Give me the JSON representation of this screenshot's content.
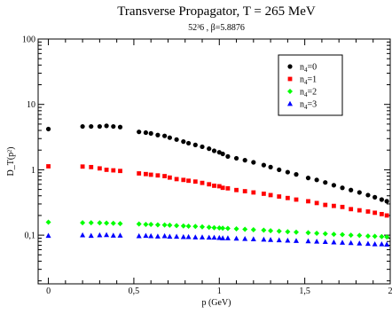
{
  "chart_data": {
    "type": "scatter",
    "title": "Transverse Propagator, T = 265 MeV",
    "subtitle": "52³6 , β=5.8876",
    "xlabel": "p (GeV)",
    "ylabel": "D_T(p²)",
    "xlim": [
      -0.06,
      2.0
    ],
    "ylim": [
      0.018,
      100
    ],
    "yscale": "log",
    "grid": false,
    "legend_position": "top-right",
    "x_ticks": [
      {
        "value": 0,
        "label": "0"
      },
      {
        "value": 0.5,
        "label": "0,5"
      },
      {
        "value": 1,
        "label": "1"
      },
      {
        "value": 1.5,
        "label": "1,5"
      },
      {
        "value": 2,
        "label": "2"
      }
    ],
    "y_ticks": [
      {
        "value": 0.1,
        "label": "0,1"
      },
      {
        "value": 1,
        "label": "1"
      },
      {
        "value": 10,
        "label": "10"
      },
      {
        "value": 100,
        "label": "100"
      }
    ],
    "series": [
      {
        "name": "n4=0",
        "name_base": "n",
        "name_sub": "4",
        "name_rest": "=0",
        "color": "#000000",
        "marker": "circle",
        "points": [
          [
            0.0,
            4.2
          ],
          [
            0.2,
            4.6
          ],
          [
            0.25,
            4.6
          ],
          [
            0.3,
            4.6
          ],
          [
            0.34,
            4.7
          ],
          [
            0.38,
            4.6
          ],
          [
            0.42,
            4.5
          ],
          [
            0.53,
            3.8
          ],
          [
            0.57,
            3.7
          ],
          [
            0.6,
            3.6
          ],
          [
            0.64,
            3.4
          ],
          [
            0.68,
            3.3
          ],
          [
            0.71,
            3.1
          ],
          [
            0.75,
            2.9
          ],
          [
            0.79,
            2.7
          ],
          [
            0.82,
            2.55
          ],
          [
            0.86,
            2.4
          ],
          [
            0.9,
            2.25
          ],
          [
            0.94,
            2.1
          ],
          [
            0.97,
            1.95
          ],
          [
            1.0,
            1.85
          ],
          [
            1.02,
            1.75
          ],
          [
            1.05,
            1.6
          ],
          [
            1.1,
            1.5
          ],
          [
            1.15,
            1.4
          ],
          [
            1.2,
            1.3
          ],
          [
            1.26,
            1.18
          ],
          [
            1.3,
            1.1
          ],
          [
            1.35,
            1.0
          ],
          [
            1.4,
            0.92
          ],
          [
            1.45,
            0.85
          ],
          [
            1.52,
            0.75
          ],
          [
            1.57,
            0.7
          ],
          [
            1.62,
            0.64
          ],
          [
            1.67,
            0.58
          ],
          [
            1.72,
            0.53
          ],
          [
            1.77,
            0.49
          ],
          [
            1.82,
            0.45
          ],
          [
            1.87,
            0.41
          ],
          [
            1.91,
            0.38
          ],
          [
            1.95,
            0.35
          ],
          [
            1.98,
            0.33
          ]
        ]
      },
      {
        "name": "n4=1",
        "name_base": "n",
        "name_sub": "4",
        "name_rest": "=1",
        "color": "#ff0000",
        "marker": "square",
        "points": [
          [
            0.0,
            1.13
          ],
          [
            0.2,
            1.12
          ],
          [
            0.25,
            1.1
          ],
          [
            0.3,
            1.05
          ],
          [
            0.34,
            1.0
          ],
          [
            0.38,
            0.98
          ],
          [
            0.42,
            0.96
          ],
          [
            0.53,
            0.88
          ],
          [
            0.57,
            0.86
          ],
          [
            0.6,
            0.84
          ],
          [
            0.64,
            0.82
          ],
          [
            0.68,
            0.8
          ],
          [
            0.71,
            0.76
          ],
          [
            0.75,
            0.72
          ],
          [
            0.79,
            0.7
          ],
          [
            0.82,
            0.68
          ],
          [
            0.86,
            0.66
          ],
          [
            0.9,
            0.63
          ],
          [
            0.94,
            0.6
          ],
          [
            0.97,
            0.57
          ],
          [
            1.0,
            0.56
          ],
          [
            1.02,
            0.53
          ],
          [
            1.05,
            0.52
          ],
          [
            1.1,
            0.49
          ],
          [
            1.15,
            0.47
          ],
          [
            1.2,
            0.45
          ],
          [
            1.26,
            0.43
          ],
          [
            1.3,
            0.41
          ],
          [
            1.35,
            0.39
          ],
          [
            1.4,
            0.37
          ],
          [
            1.45,
            0.35
          ],
          [
            1.52,
            0.33
          ],
          [
            1.57,
            0.31
          ],
          [
            1.62,
            0.29
          ],
          [
            1.67,
            0.28
          ],
          [
            1.72,
            0.27
          ],
          [
            1.77,
            0.25
          ],
          [
            1.82,
            0.24
          ],
          [
            1.87,
            0.23
          ],
          [
            1.91,
            0.22
          ],
          [
            1.95,
            0.21
          ],
          [
            1.98,
            0.2
          ]
        ]
      },
      {
        "name": "n4=2",
        "name_base": "n",
        "name_sub": "4",
        "name_rest": "=2",
        "color": "#00ff00",
        "marker": "diamond",
        "points": [
          [
            0.0,
            0.158
          ],
          [
            0.2,
            0.155
          ],
          [
            0.25,
            0.155
          ],
          [
            0.3,
            0.154
          ],
          [
            0.34,
            0.153
          ],
          [
            0.38,
            0.152
          ],
          [
            0.42,
            0.15
          ],
          [
            0.53,
            0.148
          ],
          [
            0.57,
            0.146
          ],
          [
            0.6,
            0.146
          ],
          [
            0.64,
            0.144
          ],
          [
            0.68,
            0.143
          ],
          [
            0.71,
            0.142
          ],
          [
            0.75,
            0.14
          ],
          [
            0.79,
            0.138
          ],
          [
            0.82,
            0.137
          ],
          [
            0.86,
            0.136
          ],
          [
            0.9,
            0.134
          ],
          [
            0.94,
            0.132
          ],
          [
            0.97,
            0.13
          ],
          [
            1.0,
            0.129
          ],
          [
            1.02,
            0.128
          ],
          [
            1.05,
            0.127
          ],
          [
            1.1,
            0.125
          ],
          [
            1.15,
            0.123
          ],
          [
            1.2,
            0.121
          ],
          [
            1.26,
            0.119
          ],
          [
            1.3,
            0.117
          ],
          [
            1.35,
            0.115
          ],
          [
            1.4,
            0.113
          ],
          [
            1.45,
            0.111
          ],
          [
            1.52,
            0.109
          ],
          [
            1.57,
            0.107
          ],
          [
            1.62,
            0.105
          ],
          [
            1.67,
            0.103
          ],
          [
            1.72,
            0.102
          ],
          [
            1.77,
            0.1
          ],
          [
            1.82,
            0.099
          ],
          [
            1.87,
            0.097
          ],
          [
            1.91,
            0.096
          ],
          [
            1.95,
            0.095
          ],
          [
            1.98,
            0.094
          ]
        ]
      },
      {
        "name": "n4=3",
        "name_base": "n",
        "name_sub": "4",
        "name_rest": "=3",
        "color": "#0000ff",
        "marker": "triangle",
        "points": [
          [
            0.0,
            0.098
          ],
          [
            0.2,
            0.1
          ],
          [
            0.25,
            0.098
          ],
          [
            0.3,
            0.1
          ],
          [
            0.34,
            0.101
          ],
          [
            0.38,
            0.099
          ],
          [
            0.42,
            0.099
          ],
          [
            0.53,
            0.097
          ],
          [
            0.57,
            0.098
          ],
          [
            0.6,
            0.097
          ],
          [
            0.64,
            0.096
          ],
          [
            0.68,
            0.097
          ],
          [
            0.71,
            0.095
          ],
          [
            0.75,
            0.095
          ],
          [
            0.79,
            0.094
          ],
          [
            0.82,
            0.094
          ],
          [
            0.86,
            0.093
          ],
          [
            0.9,
            0.093
          ],
          [
            0.94,
            0.092
          ],
          [
            0.97,
            0.092
          ],
          [
            1.0,
            0.091
          ],
          [
            1.02,
            0.09
          ],
          [
            1.05,
            0.09
          ],
          [
            1.1,
            0.089
          ],
          [
            1.15,
            0.088
          ],
          [
            1.2,
            0.087
          ],
          [
            1.26,
            0.086
          ],
          [
            1.3,
            0.085
          ],
          [
            1.35,
            0.084
          ],
          [
            1.4,
            0.083
          ],
          [
            1.45,
            0.082
          ],
          [
            1.52,
            0.081
          ],
          [
            1.57,
            0.08
          ],
          [
            1.62,
            0.079
          ],
          [
            1.67,
            0.078
          ],
          [
            1.72,
            0.077
          ],
          [
            1.77,
            0.076
          ],
          [
            1.82,
            0.075
          ],
          [
            1.87,
            0.074
          ],
          [
            1.91,
            0.073
          ],
          [
            1.95,
            0.073
          ],
          [
            1.98,
            0.072
          ]
        ]
      }
    ]
  }
}
